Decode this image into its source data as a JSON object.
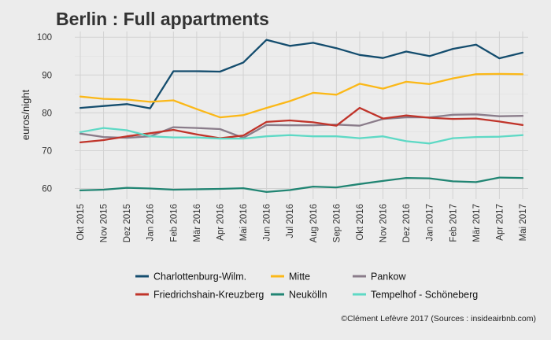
{
  "chart_data": {
    "type": "line",
    "title": "Berlin : Full appartments",
    "xlabel": "",
    "ylabel": "euros/night",
    "ylim": [
      57.2,
      101.5
    ],
    "yticks": [
      60,
      70,
      80,
      90,
      100
    ],
    "grid": true,
    "legend_position": "bottom",
    "caption": "©Clément Lefèvre 2017 (Sources : insideairbnb.com)",
    "categories": [
      "Okt 2015",
      "Nov 2015",
      "Dez 2015",
      "Jan 2016",
      "Feb 2016",
      "Mär 2016",
      "Apr 2016",
      "Mai 2016",
      "Jun 2016",
      "Jul 2016",
      "Aug 2016",
      "Sep 2016",
      "Okt 2016",
      "Nov 2016",
      "Dez 2016",
      "Jan 2017",
      "Feb 2017",
      "Mär 2017",
      "Apr 2017",
      "Mai 2017"
    ],
    "series": [
      {
        "name": "Charlottenburg-Wilm.",
        "color": "#144d6e",
        "values": [
          81.3,
          81.8,
          82.3,
          81.2,
          91.0,
          91.0,
          90.9,
          93.3,
          99.3,
          97.7,
          98.5,
          97.1,
          95.3,
          94.5,
          96.2,
          95.0,
          96.9,
          98.0,
          94.4,
          95.9
        ]
      },
      {
        "name": "Mitte",
        "color": "#fbb818",
        "values": [
          84.3,
          83.7,
          83.5,
          82.9,
          83.3,
          81.0,
          78.8,
          79.4,
          81.3,
          83.1,
          85.3,
          84.8,
          87.7,
          86.4,
          88.2,
          87.6,
          89.1,
          90.2,
          90.3,
          90.2
        ]
      },
      {
        "name": "Pankow",
        "color": "#8a7c8a",
        "values": [
          74.5,
          73.6,
          73.4,
          73.8,
          76.2,
          76.0,
          75.7,
          73.4,
          76.8,
          76.7,
          76.7,
          76.9,
          76.6,
          78.4,
          78.8,
          78.8,
          79.5,
          79.6,
          79.1,
          79.2
        ]
      },
      {
        "name": "Friedrichshain-Kreuzberg",
        "color": "#c0342a",
        "values": [
          72.2,
          72.8,
          73.8,
          74.6,
          75.5,
          74.3,
          73.3,
          74.0,
          77.6,
          78.0,
          77.5,
          76.6,
          81.3,
          78.5,
          79.3,
          78.7,
          78.4,
          78.5,
          77.7,
          76.8
        ]
      },
      {
        "name": "Neukölln",
        "color": "#218573",
        "values": [
          59.5,
          59.7,
          60.2,
          60.0,
          59.7,
          59.8,
          59.9,
          60.1,
          59.1,
          59.6,
          60.5,
          60.3,
          61.2,
          62.0,
          62.8,
          62.7,
          61.9,
          61.7,
          62.9,
          62.8
        ]
      },
      {
        "name": "Tempelhof - Schöneberg",
        "color": "#5ed9c5",
        "values": [
          74.9,
          76.0,
          75.4,
          73.8,
          73.5,
          73.5,
          73.2,
          73.2,
          73.8,
          74.1,
          73.8,
          73.8,
          73.3,
          73.8,
          72.5,
          71.9,
          73.3,
          73.6,
          73.7,
          74.1
        ]
      }
    ]
  }
}
